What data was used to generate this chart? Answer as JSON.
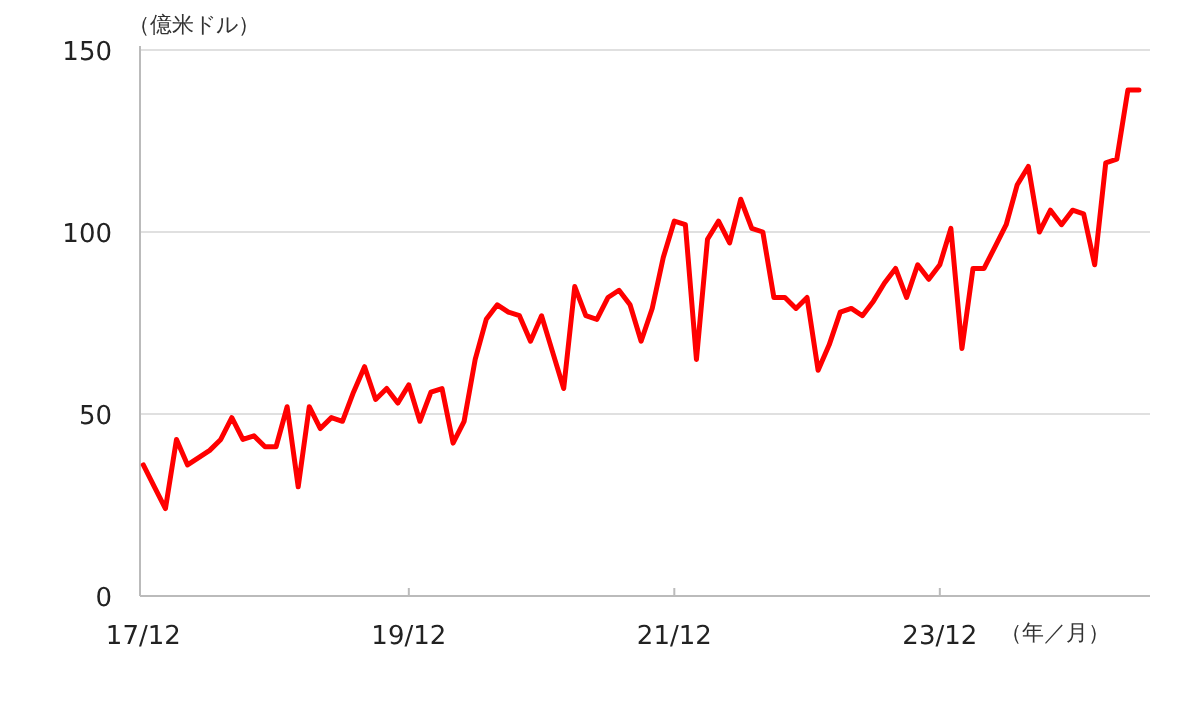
{
  "chart_data": {
    "type": "line",
    "ylabel": "（億米ドル）",
    "xlabel": "（年／月）",
    "categories": [
      "17/12",
      null,
      null,
      null,
      null,
      null,
      null,
      null,
      null,
      null,
      null,
      null,
      null,
      null,
      null,
      null,
      null,
      null,
      null,
      null,
      null,
      null,
      null,
      null,
      "19/12",
      null,
      null,
      null,
      null,
      null,
      null,
      null,
      null,
      null,
      null,
      null,
      null,
      null,
      null,
      null,
      null,
      null,
      null,
      null,
      null,
      null,
      null,
      null,
      "21/12",
      null,
      null,
      null,
      null,
      null,
      null,
      null,
      null,
      null,
      null,
      null,
      null,
      null,
      null,
      null,
      null,
      null,
      null,
      null,
      null,
      null,
      null,
      null,
      "23/12",
      null,
      null,
      null,
      null,
      null,
      null,
      null,
      null,
      null,
      null,
      null,
      null,
      null,
      null,
      null,
      null,
      null,
      null
    ],
    "values": [
      36,
      30,
      24,
      43,
      36,
      38,
      40,
      43,
      49,
      43,
      44,
      41,
      41,
      52,
      30,
      52,
      46,
      49,
      48,
      56,
      63,
      54,
      57,
      53,
      58,
      48,
      56,
      57,
      42,
      48,
      65,
      76,
      80,
      78,
      77,
      70,
      77,
      67,
      57,
      85,
      77,
      76,
      82,
      84,
      80,
      70,
      79,
      93,
      103,
      102,
      65,
      98,
      103,
      97,
      109,
      101,
      100,
      82,
      82,
      79,
      82,
      62,
      69,
      78,
      79,
      77,
      81,
      86,
      90,
      82,
      91,
      87,
      91,
      101,
      68,
      90,
      90,
      96,
      102,
      113,
      118,
      100,
      106,
      102,
      106,
      105,
      91,
      119,
      120,
      139,
      139
    ],
    "color": "#ff0000",
    "ylim": [
      0,
      150
    ],
    "yticks": [
      0,
      50,
      100,
      150
    ],
    "grid": "y"
  }
}
